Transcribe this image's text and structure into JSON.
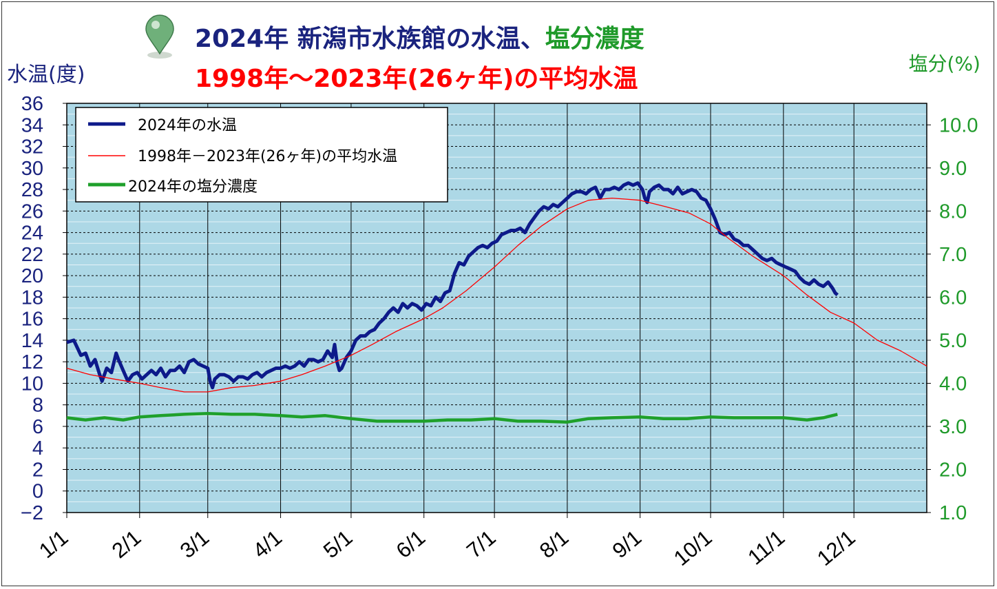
{
  "title": {
    "line1_part1": "2024年 新潟市水族館の水温、",
    "line1_part2": "塩分濃度",
    "line2": "1998年～2023年(26ヶ年)の平均水温",
    "part1_color": "#1a237e",
    "part2_color": "#1f9a2a",
    "line2_color": "#ff0000"
  },
  "chart_data": {
    "type": "line",
    "y_left": {
      "label": "水温(度)",
      "range": [
        -2,
        36
      ],
      "ticks": [
        "36",
        "34",
        "32",
        "30",
        "28",
        "26",
        "24",
        "22",
        "20",
        "18",
        "16",
        "14",
        "12",
        "10",
        "8",
        "6",
        "4",
        "2",
        "0",
        "−2"
      ]
    },
    "y_right": {
      "label": "塩分(%)",
      "range": [
        1.0,
        10.5
      ],
      "ticks": [
        "10.0",
        "9.0",
        "8.0",
        "7.0",
        "6.0",
        "5.0",
        "4.0",
        "3.0",
        "2.0",
        "1.0"
      ]
    },
    "x_axis": {
      "ticks": [
        "1/1",
        "2/1",
        "3/1",
        "4/1",
        "5/1",
        "6/1",
        "7/1",
        "8/1",
        "9/1",
        "10/1",
        "11/1",
        "12/1"
      ],
      "tick_days": [
        0,
        31,
        60,
        91,
        121,
        152,
        182,
        213,
        244,
        274,
        305,
        335
      ],
      "range_days": [
        0,
        366
      ]
    },
    "grid": true,
    "plot_background": "#add8e6",
    "legend": {
      "placement": "top-left",
      "entries": [
        "2024年の水温",
        "1998年－2023年(26ヶ年)の平均水温",
        "2024年の塩分濃度"
      ]
    },
    "series": [
      {
        "name": "2024年の水温",
        "axis": "left",
        "color": "#0d1a8a",
        "points": [
          [
            0,
            13.8
          ],
          [
            3,
            14.0
          ],
          [
            6,
            12.6
          ],
          [
            8,
            12.8
          ],
          [
            10,
            11.6
          ],
          [
            12,
            12.2
          ],
          [
            14,
            10.8
          ],
          [
            15,
            10.2
          ],
          [
            17,
            11.4
          ],
          [
            19,
            11.0
          ],
          [
            21,
            12.8
          ],
          [
            22,
            12.2
          ],
          [
            24,
            11.2
          ],
          [
            26,
            10.2
          ],
          [
            28,
            10.8
          ],
          [
            30,
            11.0
          ],
          [
            32,
            10.4
          ],
          [
            34,
            10.8
          ],
          [
            36,
            11.2
          ],
          [
            38,
            10.8
          ],
          [
            40,
            11.4
          ],
          [
            42,
            10.6
          ],
          [
            44,
            11.2
          ],
          [
            46,
            11.2
          ],
          [
            48,
            11.6
          ],
          [
            50,
            11.0
          ],
          [
            52,
            12.0
          ],
          [
            54,
            12.2
          ],
          [
            56,
            11.8
          ],
          [
            58,
            11.6
          ],
          [
            60,
            11.4
          ],
          [
            61,
            10.2
          ],
          [
            62,
            9.6
          ],
          [
            63,
            10.4
          ],
          [
            65,
            10.8
          ],
          [
            67,
            10.8
          ],
          [
            69,
            10.6
          ],
          [
            71,
            10.2
          ],
          [
            73,
            10.6
          ],
          [
            75,
            10.6
          ],
          [
            77,
            10.4
          ],
          [
            79,
            10.8
          ],
          [
            81,
            11.0
          ],
          [
            83,
            10.6
          ],
          [
            85,
            11.0
          ],
          [
            87,
            11.2
          ],
          [
            89,
            11.4
          ],
          [
            91,
            11.4
          ],
          [
            93,
            11.6
          ],
          [
            95,
            11.4
          ],
          [
            97,
            11.6
          ],
          [
            99,
            12.0
          ],
          [
            101,
            11.6
          ],
          [
            103,
            12.2
          ],
          [
            105,
            12.2
          ],
          [
            107,
            12.0
          ],
          [
            109,
            12.2
          ],
          [
            111,
            13.0
          ],
          [
            113,
            12.4
          ],
          [
            114,
            13.6
          ],
          [
            115,
            12.0
          ],
          [
            116,
            11.2
          ],
          [
            117,
            11.4
          ],
          [
            119,
            12.4
          ],
          [
            121,
            13.0
          ],
          [
            123,
            14.0
          ],
          [
            125,
            14.4
          ],
          [
            127,
            14.4
          ],
          [
            129,
            14.8
          ],
          [
            131,
            15.0
          ],
          [
            133,
            15.6
          ],
          [
            135,
            16.0
          ],
          [
            137,
            16.6
          ],
          [
            139,
            17.0
          ],
          [
            141,
            16.6
          ],
          [
            143,
            17.4
          ],
          [
            145,
            17.0
          ],
          [
            147,
            17.4
          ],
          [
            149,
            17.2
          ],
          [
            151,
            16.8
          ],
          [
            153,
            17.4
          ],
          [
            155,
            17.2
          ],
          [
            157,
            18.0
          ],
          [
            159,
            17.6
          ],
          [
            161,
            18.4
          ],
          [
            163,
            18.6
          ],
          [
            165,
            20.2
          ],
          [
            167,
            21.2
          ],
          [
            169,
            21.0
          ],
          [
            171,
            21.8
          ],
          [
            173,
            22.2
          ],
          [
            175,
            22.6
          ],
          [
            177,
            22.8
          ],
          [
            179,
            22.6
          ],
          [
            181,
            23.0
          ],
          [
            183,
            23.2
          ],
          [
            185,
            23.8
          ],
          [
            187,
            24.0
          ],
          [
            189,
            24.2
          ],
          [
            191,
            24.2
          ],
          [
            193,
            24.4
          ],
          [
            195,
            24.0
          ],
          [
            197,
            24.8
          ],
          [
            199,
            25.4
          ],
          [
            201,
            26.0
          ],
          [
            203,
            26.4
          ],
          [
            205,
            26.2
          ],
          [
            207,
            26.6
          ],
          [
            209,
            26.4
          ],
          [
            211,
            26.8
          ],
          [
            213,
            27.2
          ],
          [
            215,
            27.6
          ],
          [
            217,
            27.8
          ],
          [
            219,
            27.8
          ],
          [
            221,
            27.6
          ],
          [
            223,
            28.0
          ],
          [
            225,
            28.2
          ],
          [
            227,
            27.2
          ],
          [
            229,
            28.0
          ],
          [
            231,
            28.0
          ],
          [
            233,
            28.2
          ],
          [
            235,
            28.0
          ],
          [
            237,
            28.4
          ],
          [
            239,
            28.6
          ],
          [
            241,
            28.4
          ],
          [
            243,
            28.6
          ],
          [
            245,
            28.0
          ],
          [
            246,
            27.2
          ],
          [
            247,
            26.8
          ],
          [
            248,
            27.8
          ],
          [
            250,
            28.2
          ],
          [
            252,
            28.4
          ],
          [
            254,
            28.0
          ],
          [
            256,
            28.0
          ],
          [
            258,
            27.6
          ],
          [
            260,
            28.2
          ],
          [
            262,
            27.6
          ],
          [
            264,
            27.8
          ],
          [
            266,
            28.0
          ],
          [
            268,
            27.8
          ],
          [
            270,
            27.2
          ],
          [
            272,
            27.0
          ],
          [
            274,
            26.2
          ],
          [
            276,
            25.2
          ],
          [
            278,
            24.0
          ],
          [
            280,
            23.8
          ],
          [
            282,
            24.0
          ],
          [
            284,
            23.4
          ],
          [
            286,
            23.2
          ],
          [
            288,
            22.8
          ],
          [
            290,
            22.8
          ],
          [
            292,
            22.4
          ],
          [
            294,
            22.0
          ],
          [
            296,
            21.6
          ],
          [
            298,
            21.4
          ],
          [
            300,
            21.6
          ],
          [
            302,
            21.2
          ],
          [
            304,
            21.0
          ],
          [
            306,
            20.8
          ],
          [
            308,
            20.6
          ],
          [
            310,
            20.4
          ],
          [
            312,
            19.8
          ],
          [
            314,
            19.4
          ],
          [
            316,
            19.2
          ],
          [
            318,
            19.6
          ],
          [
            320,
            19.2
          ],
          [
            322,
            19.0
          ],
          [
            324,
            19.4
          ],
          [
            326,
            18.8
          ],
          [
            327,
            18.4
          ],
          [
            328,
            18.2
          ]
        ]
      },
      {
        "name": "1998年－2023年(26ヶ年)の平均水温",
        "axis": "left",
        "color": "#ff0000",
        "points": [
          [
            0,
            11.4
          ],
          [
            10,
            10.8
          ],
          [
            20,
            10.4
          ],
          [
            31,
            10.0
          ],
          [
            40,
            9.6
          ],
          [
            50,
            9.2
          ],
          [
            60,
            9.2
          ],
          [
            70,
            9.6
          ],
          [
            80,
            9.8
          ],
          [
            91,
            10.2
          ],
          [
            100,
            10.8
          ],
          [
            110,
            11.6
          ],
          [
            121,
            12.6
          ],
          [
            130,
            13.6
          ],
          [
            140,
            14.8
          ],
          [
            152,
            16.0
          ],
          [
            160,
            17.0
          ],
          [
            170,
            18.6
          ],
          [
            182,
            20.8
          ],
          [
            192,
            22.8
          ],
          [
            202,
            24.6
          ],
          [
            213,
            26.2
          ],
          [
            222,
            27.0
          ],
          [
            232,
            27.2
          ],
          [
            244,
            27.0
          ],
          [
            255,
            26.4
          ],
          [
            265,
            25.8
          ],
          [
            274,
            24.8
          ],
          [
            282,
            23.4
          ],
          [
            292,
            21.8
          ],
          [
            305,
            20.0
          ],
          [
            315,
            18.2
          ],
          [
            325,
            16.6
          ],
          [
            335,
            15.6
          ],
          [
            345,
            14.0
          ],
          [
            355,
            13.0
          ],
          [
            366,
            11.6
          ]
        ]
      },
      {
        "name": "2024年の塩分濃度",
        "axis": "right",
        "color": "#1fa02b",
        "points": [
          [
            0,
            3.2
          ],
          [
            8,
            3.15
          ],
          [
            16,
            3.2
          ],
          [
            24,
            3.15
          ],
          [
            31,
            3.22
          ],
          [
            40,
            3.25
          ],
          [
            50,
            3.28
          ],
          [
            60,
            3.3
          ],
          [
            70,
            3.28
          ],
          [
            80,
            3.28
          ],
          [
            91,
            3.25
          ],
          [
            100,
            3.22
          ],
          [
            110,
            3.25
          ],
          [
            121,
            3.18
          ],
          [
            132,
            3.12
          ],
          [
            142,
            3.12
          ],
          [
            152,
            3.12
          ],
          [
            162,
            3.15
          ],
          [
            172,
            3.15
          ],
          [
            182,
            3.18
          ],
          [
            192,
            3.12
          ],
          [
            202,
            3.12
          ],
          [
            213,
            3.1
          ],
          [
            222,
            3.18
          ],
          [
            232,
            3.2
          ],
          [
            244,
            3.22
          ],
          [
            254,
            3.18
          ],
          [
            264,
            3.18
          ],
          [
            274,
            3.22
          ],
          [
            284,
            3.2
          ],
          [
            294,
            3.2
          ],
          [
            305,
            3.2
          ],
          [
            315,
            3.15
          ],
          [
            322,
            3.2
          ],
          [
            328,
            3.28
          ]
        ]
      }
    ]
  }
}
